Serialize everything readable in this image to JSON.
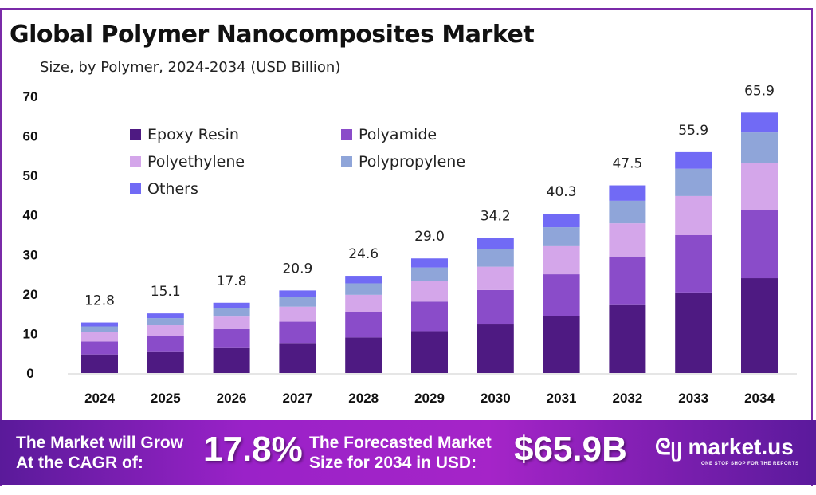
{
  "title": "Global Polymer Nanocomposites Market",
  "subtitle": "Size, by Polymer, 2024-2034 (USD Billion)",
  "chart_data": {
    "type": "bar",
    "stacked": true,
    "categories": [
      "2024",
      "2025",
      "2026",
      "2027",
      "2028",
      "2029",
      "2030",
      "2031",
      "2032",
      "2033",
      "2034"
    ],
    "series": [
      {
        "name": "Epoxy Resin",
        "color": "#4e1a82",
        "values": [
          4.7,
          5.5,
          6.5,
          7.6,
          9.0,
          10.6,
          12.3,
          14.4,
          17.2,
          20.4,
          24.0
        ]
      },
      {
        "name": "Polyamide",
        "color": "#8a4cc9",
        "values": [
          3.3,
          3.9,
          4.6,
          5.4,
          6.4,
          7.5,
          8.7,
          10.6,
          12.3,
          14.5,
          17.2
        ]
      },
      {
        "name": "Polyethylene",
        "color": "#d4a6ea",
        "values": [
          2.3,
          2.7,
          3.2,
          3.8,
          4.4,
          5.2,
          5.9,
          7.3,
          8.4,
          9.9,
          11.9
        ]
      },
      {
        "name": "Polypropylene",
        "color": "#8fa5d9",
        "values": [
          1.5,
          1.8,
          2.1,
          2.5,
          2.9,
          3.4,
          4.4,
          4.6,
          5.7,
          6.9,
          7.8
        ]
      },
      {
        "name": "Others",
        "color": "#716af5",
        "values": [
          1.0,
          1.2,
          1.4,
          1.6,
          1.9,
          2.3,
          2.9,
          3.4,
          3.9,
          4.2,
          5.0
        ]
      }
    ],
    "totals": [
      "12.8",
      "15.1",
      "17.8",
      "20.9",
      "24.6",
      "29.0",
      "34.2",
      "40.3",
      "47.5",
      "55.9",
      "65.9"
    ],
    "yticks": [
      "0",
      "10",
      "20",
      "30",
      "40",
      "50",
      "60",
      "70"
    ],
    "ylim": [
      0,
      70
    ],
    "grid": false,
    "legend": "top-left"
  },
  "banner": {
    "cagr_label_1": "The Market will Grow",
    "cagr_label_2": "At the CAGR of:",
    "cagr_value": "17.8%",
    "forecast_label_1": "The Forecasted Market",
    "forecast_label_2": "Size for 2034 in USD:",
    "forecast_value": "$65.9B",
    "logo_text": "market.us",
    "logo_tagline": "ONE STOP SHOP FOR THE REPORTS"
  }
}
